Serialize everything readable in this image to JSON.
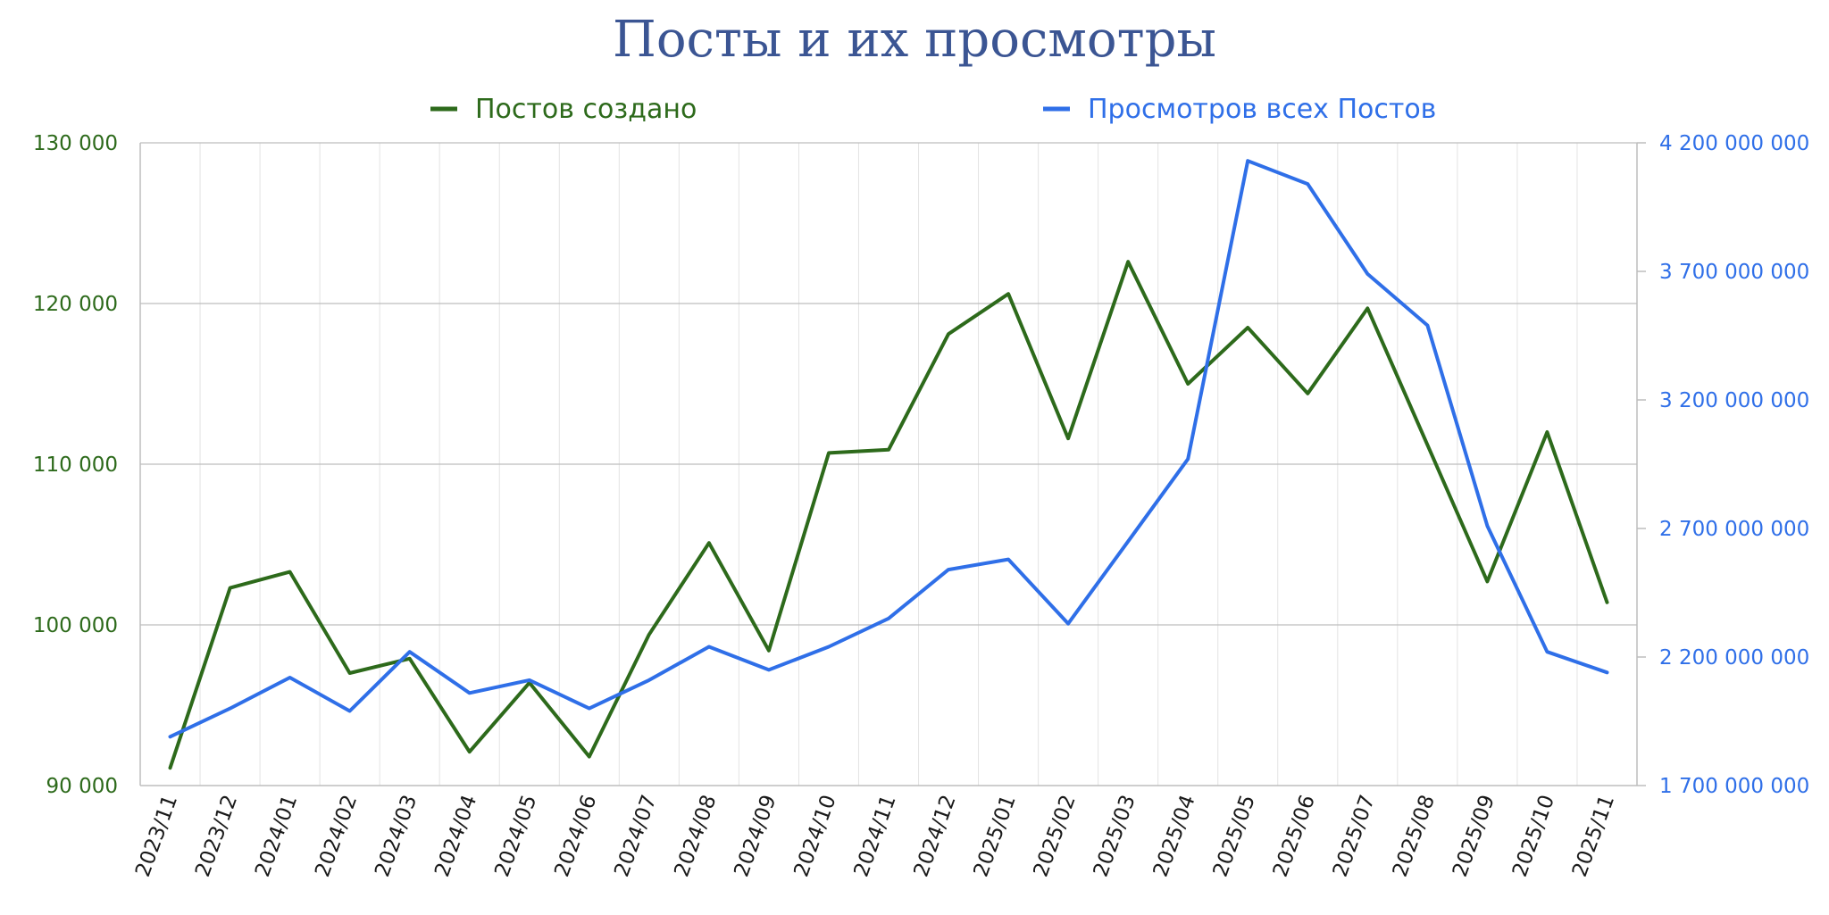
{
  "chart_data": {
    "type": "line",
    "title": "Посты и их просмотры",
    "legend_position": "top",
    "grid": true,
    "categories": [
      "2023/11",
      "2023/12",
      "2024/01",
      "2024/02",
      "2024/03",
      "2024/04",
      "2024/05",
      "2024/06",
      "2024/07",
      "2024/08",
      "2024/09",
      "2024/10",
      "2024/11",
      "2024/12",
      "2025/01",
      "2025/02",
      "2025/03",
      "2025/04",
      "2025/05",
      "2025/06",
      "2025/07",
      "2025/08",
      "2025/09",
      "2025/10",
      "2025/11"
    ],
    "left_axis": {
      "ylim": [
        90000,
        130000
      ],
      "ticks": [
        90000,
        100000,
        110000,
        120000,
        130000
      ],
      "tick_labels": [
        "90 000",
        "100 000",
        "110 000",
        "120 000",
        "130 000"
      ]
    },
    "right_axis": {
      "ylim": [
        1700000000,
        4200000000
      ],
      "ticks": [
        1700000000,
        2200000000,
        2700000000,
        3200000000,
        3700000000,
        4200000000
      ],
      "tick_labels": [
        "1 700 000 000",
        "2 200 000 000",
        "2 700 000 000",
        "3 200 000 000",
        "3 700 000 000",
        "4 200 000 000"
      ]
    },
    "series": [
      {
        "name": "Постов создано",
        "axis": "left",
        "color": "#2d6a1b",
        "values": [
          91100,
          102300,
          103300,
          97000,
          97900,
          92100,
          96400,
          91800,
          99400,
          105100,
          98400,
          110700,
          110900,
          118100,
          120600,
          111600,
          122600,
          115000,
          118500,
          114400,
          119700,
          111200,
          102700,
          112000,
          101400
        ]
      },
      {
        "name": "Просмотров всех Постов",
        "axis": "right",
        "color": "#2f6fe8",
        "values": [
          1890000000,
          2000000000,
          2120000000,
          1990000000,
          2220000000,
          2060000000,
          2110000000,
          2000000000,
          2110000000,
          2240000000,
          2150000000,
          2240000000,
          2350000000,
          2540000000,
          2580000000,
          2330000000,
          2650000000,
          2970000000,
          4130000000,
          4040000000,
          3690000000,
          3490000000,
          2710000000,
          2220000000,
          2140000000
        ]
      }
    ]
  }
}
